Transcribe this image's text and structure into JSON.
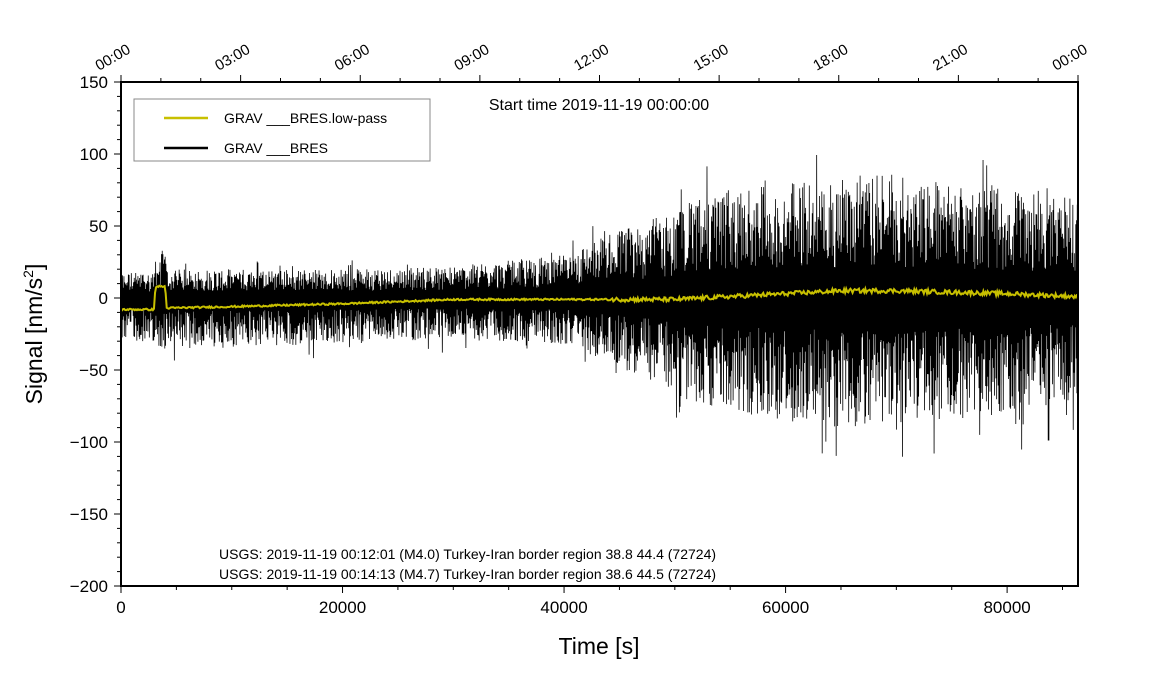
{
  "chart_data": {
    "type": "line",
    "title": "Start time 2019-11-19 00:00:00",
    "xlabel": "Time [s]",
    "ylabel": "Signal [nm/s",
    "ylabel_superscript": "2",
    "ylabel_suffix": "]",
    "xlim": [
      0,
      86400
    ],
    "ylim": [
      -200,
      150
    ],
    "xticks": [
      0,
      20000,
      40000,
      60000,
      80000
    ],
    "xtick_labels": [
      "0",
      "20000",
      "40000",
      "60000",
      "80000"
    ],
    "yticks": [
      150,
      100,
      50,
      0,
      -50,
      -100,
      -150,
      -200
    ],
    "ytick_labels": [
      "150",
      "100",
      "50",
      "0",
      "−50",
      "−100",
      "−150",
      "−200"
    ],
    "top_axis": {
      "ticks": [
        0,
        10800,
        21600,
        32400,
        43200,
        54000,
        64800,
        75600,
        86400
      ],
      "labels": [
        "00:00",
        "03:00",
        "06:00",
        "09:00",
        "12:00",
        "15:00",
        "18:00",
        "21:00",
        "00:00"
      ]
    },
    "legend": {
      "position": "top-left",
      "entries": [
        {
          "label": "GRAV ___BRES.low-pass",
          "color": "#c8c000"
        },
        {
          "label": "GRAV ___BRES",
          "color": "#000000"
        }
      ]
    },
    "series": [
      {
        "name": "GRAV ___BRES",
        "color": "#000000",
        "style": "envelope",
        "envelope_times": [
          0,
          3000,
          3100,
          4000,
          4100,
          10000,
          20000,
          30000,
          40000,
          44000,
          50000,
          52000,
          60000,
          65000,
          70000,
          75000,
          80000,
          86400
        ],
        "envelope_upper": [
          18,
          18,
          33,
          33,
          20,
          20,
          20,
          22,
          30,
          45,
          60,
          70,
          80,
          85,
          85,
          80,
          78,
          70
        ],
        "envelope_lower": [
          -30,
          -30,
          -35,
          -35,
          -32,
          -35,
          -32,
          -28,
          -32,
          -45,
          -65,
          -75,
          -85,
          -90,
          -88,
          -85,
          -80,
          -70
        ]
      },
      {
        "name": "GRAV ___BRES.low-pass",
        "color": "#c8c000",
        "style": "line",
        "x": [
          0,
          3000,
          3100,
          4000,
          4100,
          10000,
          20000,
          30000,
          40000,
          50000,
          60000,
          65000,
          70000,
          75000,
          80000,
          86400
        ],
        "y": [
          -8,
          -8,
          8,
          8,
          -7,
          -6,
          -4,
          -1,
          -1,
          -1,
          3,
          5,
          5,
          4,
          3,
          1
        ]
      }
    ],
    "annotations": [
      "USGS: 2019-11-19 00:12:01 (M4.0) Turkey-Iran border region 38.8 44.4 (72724)",
      "USGS: 2019-11-19 00:14:13 (M4.7) Turkey-Iran border region 38.6 44.5 (72724)"
    ]
  }
}
